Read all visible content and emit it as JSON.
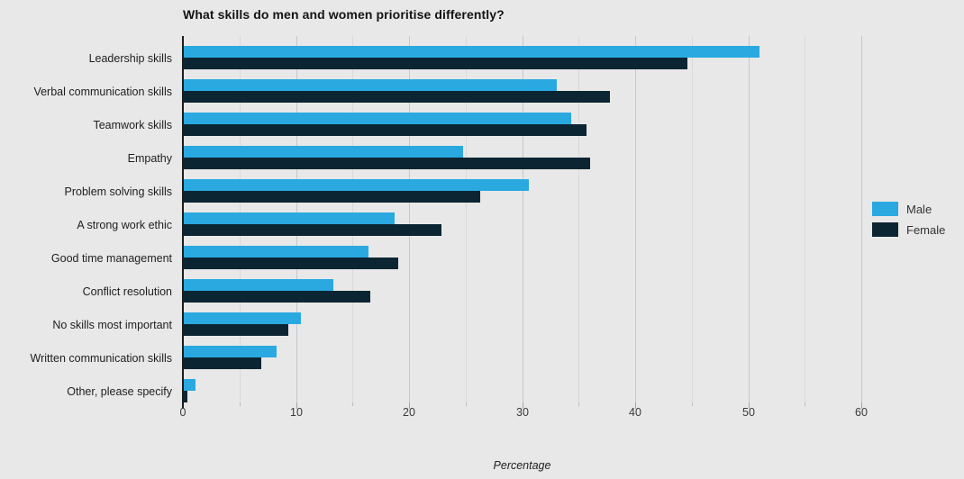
{
  "title": "What skills do men and women prioritise differently?",
  "x_axis": {
    "label": "Percentage",
    "major_tick_labels": [
      "0",
      "10",
      "20",
      "30",
      "40",
      "50",
      "60"
    ]
  },
  "legend": {
    "items": [
      {
        "label": "Male",
        "color": "#29a9e0"
      },
      {
        "label": "Female",
        "color": "#0c2533"
      }
    ]
  },
  "colors": {
    "background": "#e8e8e8",
    "male": "#29a9e0",
    "female": "#0c2533",
    "grid_major": "#c3c9ce",
    "grid_minor": "#d9d9d9",
    "axis_line": "#1c1c1c"
  },
  "chart_data": {
    "type": "bar",
    "orientation": "horizontal",
    "title": "What skills do men and women prioritise differently?",
    "xlabel": "Percentage",
    "ylabel": "",
    "xlim": [
      0,
      60
    ],
    "x_major_ticks": [
      0,
      10,
      20,
      30,
      40,
      50,
      60
    ],
    "x_minor_step": 5,
    "grid": true,
    "legend_position": "right",
    "categories": [
      "Leadership skills",
      "Verbal communication skills",
      "Teamwork skills",
      "Empathy",
      "Problem solving skills",
      "A strong work ethic",
      "Good time management",
      "Conflict resolution",
      "No skills most important",
      "Written communication skills",
      "Other, please specify"
    ],
    "series": [
      {
        "name": "Male",
        "color": "#29a9e0",
        "values": [
          51,
          33.1,
          34.3,
          24.8,
          30.6,
          18.7,
          16.4,
          13.3,
          10.4,
          8.3,
          1.1
        ]
      },
      {
        "name": "Female",
        "color": "#0c2533",
        "values": [
          44.6,
          37.8,
          35.7,
          36,
          26.3,
          22.9,
          19,
          16.6,
          9.3,
          6.9,
          0.4
        ]
      }
    ]
  }
}
